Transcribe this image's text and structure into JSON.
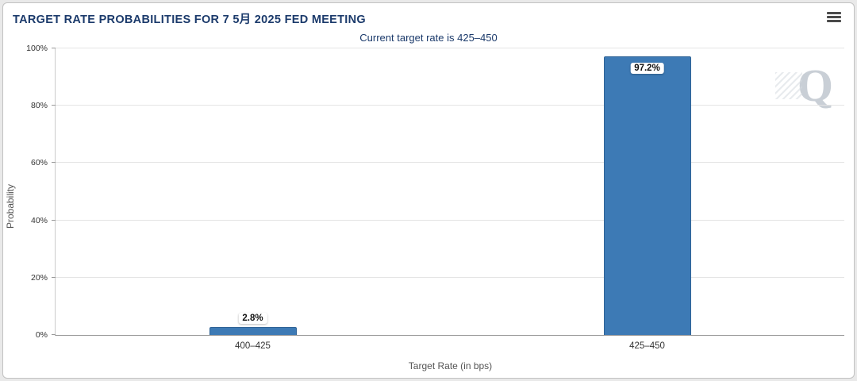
{
  "header": {
    "title": "TARGET RATE PROBABILITIES FOR 7 5月 2025 FED MEETING"
  },
  "watermark": "Q",
  "chart_data": {
    "type": "bar",
    "title": "Current target rate is 425–450",
    "categories": [
      "400–425",
      "425–450"
    ],
    "values": [
      2.8,
      97.2
    ],
    "value_labels": [
      "2.8%",
      "97.2%"
    ],
    "xlabel": "Target Rate (in bps)",
    "ylabel": "Probability",
    "ylim": [
      0,
      100
    ],
    "yticks": [
      0,
      20,
      40,
      60,
      80,
      100
    ],
    "ytick_labels": [
      "0%",
      "20%",
      "40%",
      "60%",
      "80%",
      "100%"
    ],
    "bar_color": "#3d7ab5",
    "bar_border_color": "#2f6396",
    "grid": true,
    "legend": false
  },
  "colors": {
    "title_text": "#1b3a6b",
    "subtitle_text": "#1b3a6b",
    "axis_text": "#333333",
    "axis_title_text": "#555555",
    "gridline": "#e4e4e4",
    "watermark": "#c9cfd6"
  }
}
